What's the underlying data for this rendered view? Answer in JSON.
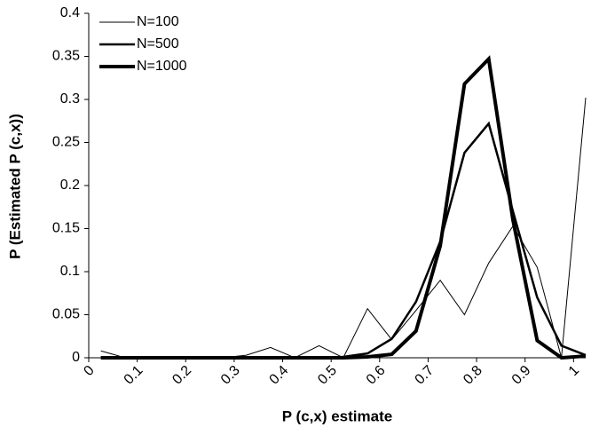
{
  "chart_data": {
    "type": "line",
    "x_label": "P (c,x) estimate",
    "y_label": "P (Estimated P (c,x))",
    "x": [
      0.025,
      0.075,
      0.125,
      0.175,
      0.225,
      0.275,
      0.325,
      0.375,
      0.425,
      0.475,
      0.525,
      0.575,
      0.625,
      0.675,
      0.725,
      0.775,
      0.825,
      0.875,
      0.925,
      0.975,
      1.025
    ],
    "series": [
      {
        "name": "N=100",
        "color": "#000000",
        "line_width": 1,
        "values": [
          0.008,
          0,
          0,
          0,
          0,
          0,
          0.003,
          0.012,
          0,
          0.014,
          0,
          0.057,
          0.021,
          0.055,
          0.09,
          0.05,
          0.11,
          0.153,
          0.105,
          0,
          0.302
        ]
      },
      {
        "name": "N=500",
        "color": "#000000",
        "line_width": 2.5,
        "values": [
          0,
          0,
          0,
          0,
          0,
          0,
          0,
          0,
          0,
          0,
          0.001,
          0.005,
          0.022,
          0.065,
          0.135,
          0.238,
          0.272,
          0.17,
          0.07,
          0.014,
          0.003
        ]
      },
      {
        "name": "N=1000",
        "color": "#000000",
        "line_width": 4,
        "values": [
          0,
          0,
          0,
          0,
          0,
          0,
          0,
          0,
          0,
          0,
          0,
          0.001,
          0.004,
          0.031,
          0.13,
          0.318,
          0.347,
          0.16,
          0.02,
          0,
          0.002
        ]
      }
    ],
    "xlim": [
      0,
      1.025
    ],
    "xticks": [
      0,
      0.1,
      0.2,
      0.3,
      0.4,
      0.5,
      0.6,
      0.7,
      0.8,
      0.9,
      1
    ],
    "ylim": [
      0,
      0.4
    ],
    "yticks": [
      0,
      0.05,
      0.1,
      0.15,
      0.2,
      0.25,
      0.3,
      0.35,
      0.4
    ],
    "grid": false,
    "legend": "top-left"
  }
}
